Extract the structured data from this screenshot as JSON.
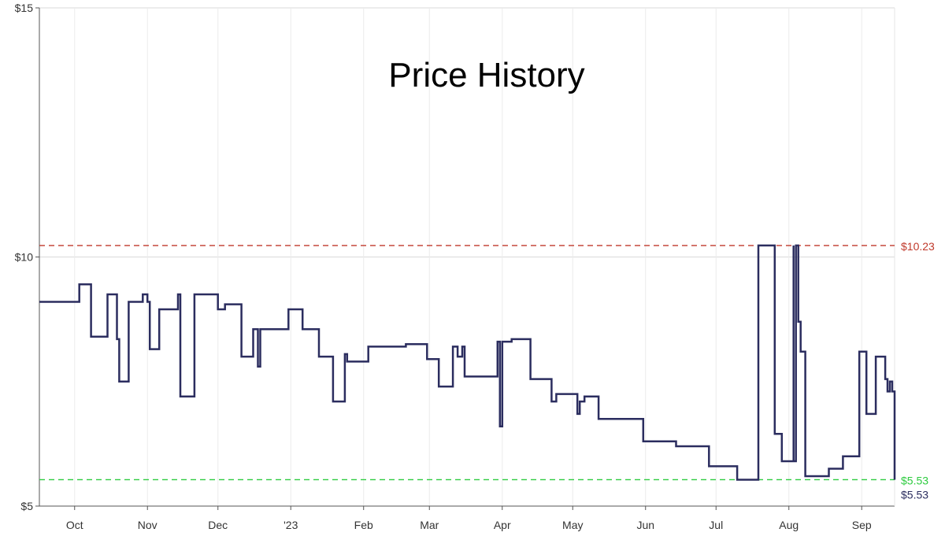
{
  "chart_data": {
    "type": "line",
    "title": "Price History",
    "xlabel": "",
    "ylabel": "",
    "x_ticks": [
      "Oct",
      "Nov",
      "Dec",
      "'23",
      "Feb",
      "Mar",
      "Apr",
      "May",
      "Jun",
      "Jul",
      "Aug",
      "Sep"
    ],
    "x_tick_dates": [
      "2022-10-01",
      "2022-11-01",
      "2022-12-01",
      "2023-01-01",
      "2023-02-01",
      "2023-03-01",
      "2023-04-01",
      "2023-05-01",
      "2023-06-01",
      "2023-07-01",
      "2023-08-01",
      "2023-09-01"
    ],
    "y_ticks": [
      "$5",
      "$10",
      "$15"
    ],
    "y_tick_values": [
      5,
      10,
      15
    ],
    "xlim": [
      "2022-09-16",
      "2023-09-15"
    ],
    "ylim": [
      5,
      15
    ],
    "grid": true,
    "step": true,
    "series_color": "#2b2d5f",
    "series": [
      {
        "points": [
          [
            "2022-09-16",
            9.1
          ],
          [
            "2022-10-03",
            9.45
          ],
          [
            "2022-10-08",
            8.4
          ],
          [
            "2022-10-15",
            9.25
          ],
          [
            "2022-10-19",
            8.35
          ],
          [
            "2022-10-20",
            7.5
          ],
          [
            "2022-10-24",
            9.1
          ],
          [
            "2022-10-30",
            9.25
          ],
          [
            "2022-11-01",
            9.1
          ],
          [
            "2022-11-02",
            8.15
          ],
          [
            "2022-11-06",
            8.95
          ],
          [
            "2022-11-14",
            9.25
          ],
          [
            "2022-11-15",
            7.2
          ],
          [
            "2022-11-21",
            9.25
          ],
          [
            "2022-12-01",
            8.95
          ],
          [
            "2022-12-04",
            9.05
          ],
          [
            "2022-12-11",
            8.0
          ],
          [
            "2022-12-16",
            8.55
          ],
          [
            "2022-12-18",
            7.8
          ],
          [
            "2022-12-19",
            8.55
          ],
          [
            "2022-12-27",
            8.55
          ],
          [
            "2022-12-31",
            8.95
          ],
          [
            "2023-01-06",
            8.55
          ],
          [
            "2023-01-13",
            8.0
          ],
          [
            "2023-01-19",
            7.1
          ],
          [
            "2023-01-24",
            8.05
          ],
          [
            "2023-01-25",
            7.9
          ],
          [
            "2023-02-03",
            8.2
          ],
          [
            "2023-02-19",
            8.25
          ],
          [
            "2023-02-28",
            7.95
          ],
          [
            "2023-03-05",
            7.4
          ],
          [
            "2023-03-11",
            8.2
          ],
          [
            "2023-03-13",
            8.0
          ],
          [
            "2023-03-15",
            8.2
          ],
          [
            "2023-03-16",
            7.6
          ],
          [
            "2023-03-29",
            7.6
          ],
          [
            "2023-03-30",
            8.3
          ],
          [
            "2023-03-31",
            6.6
          ],
          [
            "2023-04-01",
            8.3
          ],
          [
            "2023-04-05",
            8.35
          ],
          [
            "2023-04-13",
            7.55
          ],
          [
            "2023-04-22",
            7.1
          ],
          [
            "2023-04-24",
            7.25
          ],
          [
            "2023-05-03",
            6.85
          ],
          [
            "2023-05-04",
            7.1
          ],
          [
            "2023-05-06",
            7.2
          ],
          [
            "2023-05-12",
            6.75
          ],
          [
            "2023-05-31",
            6.3
          ],
          [
            "2023-06-14",
            6.2
          ],
          [
            "2023-06-28",
            5.8
          ],
          [
            "2023-07-10",
            5.53
          ],
          [
            "2023-07-19",
            10.23
          ],
          [
            "2023-07-26",
            6.45
          ],
          [
            "2023-07-29",
            5.9
          ],
          [
            "2023-08-03",
            10.23
          ],
          [
            "2023-08-03",
            5.9
          ],
          [
            "2023-08-04",
            10.23
          ],
          [
            "2023-08-05",
            8.7
          ],
          [
            "2023-08-06",
            8.1
          ],
          [
            "2023-08-08",
            5.6
          ],
          [
            "2023-08-18",
            5.75
          ],
          [
            "2023-08-24",
            6.0
          ],
          [
            "2023-08-31",
            8.1
          ],
          [
            "2023-09-03",
            6.85
          ],
          [
            "2023-09-07",
            8.0
          ],
          [
            "2023-09-11",
            7.55
          ],
          [
            "2023-09-12",
            7.3
          ],
          [
            "2023-09-13",
            7.5
          ],
          [
            "2023-09-14",
            7.3
          ],
          [
            "2023-09-15",
            5.53
          ]
        ]
      }
    ],
    "reference_lines": [
      {
        "label": "$10.23",
        "value": 10.23,
        "color": "#c0392b",
        "style": "dashed"
      },
      {
        "label": "$5.53",
        "value": 5.53,
        "color": "#2ecc40",
        "style": "dashed"
      }
    ],
    "end_label": {
      "label": "$5.53",
      "value": 5.53,
      "color": "#2b2d5f"
    }
  }
}
